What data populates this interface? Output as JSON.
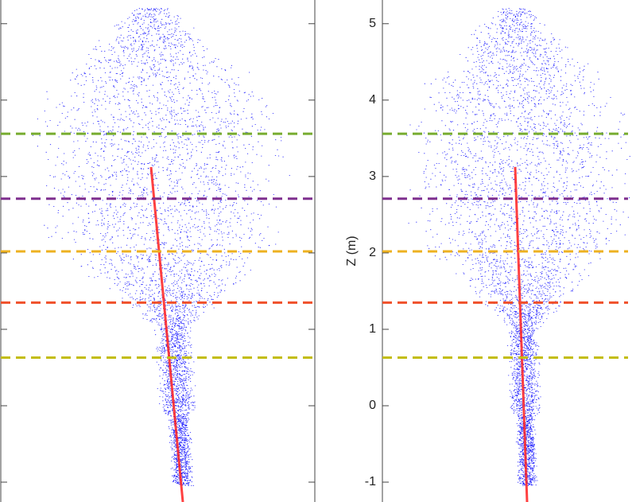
{
  "chart_data": [
    {
      "type": "hlines",
      "ylim": [
        -1.26,
        5.31
      ],
      "yticks": [
        -1,
        0,
        1,
        2,
        3,
        4,
        5
      ],
      "tick_labels": false,
      "levels": [
        {
          "value": 3.56,
          "color": "#77ac30"
        },
        {
          "value": 2.71,
          "color": "#7e2f8e"
        },
        {
          "value": 2.02,
          "color": "#edb120"
        },
        {
          "value": 1.35,
          "color": "#f0502a"
        },
        {
          "value": 0.63,
          "color": "#c3bd12"
        }
      ]
    },
    {
      "type": "hlines",
      "ylabel": "Z (m)",
      "ylim": [
        -1.26,
        5.31
      ],
      "yticks": [
        -1,
        0,
        1,
        2,
        3,
        4,
        5
      ],
      "tick_labels": true,
      "levels": [
        {
          "value": 3.56,
          "color": "#77ac30"
        },
        {
          "value": 2.71,
          "color": "#7e2f8e"
        },
        {
          "value": 2.02,
          "color": "#edb120"
        },
        {
          "value": 1.35,
          "color": "#f0502a"
        },
        {
          "value": 0.63,
          "color": "#c3bd12"
        }
      ]
    }
  ]
}
